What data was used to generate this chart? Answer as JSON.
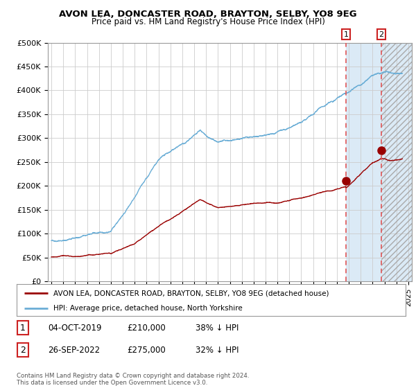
{
  "title": "AVON LEA, DONCASTER ROAD, BRAYTON, SELBY, YO8 9EG",
  "subtitle": "Price paid vs. HM Land Registry's House Price Index (HPI)",
  "ylabel_ticks": [
    "£0",
    "£50K",
    "£100K",
    "£150K",
    "£200K",
    "£250K",
    "£300K",
    "£350K",
    "£400K",
    "£450K",
    "£500K"
  ],
  "ytick_values": [
    0,
    50000,
    100000,
    150000,
    200000,
    250000,
    300000,
    350000,
    400000,
    450000,
    500000
  ],
  "xlim_start": 1994.7,
  "xlim_end": 2025.3,
  "ylim_min": 0,
  "ylim_max": 500000,
  "hpi_color": "#6baed6",
  "price_color": "#990000",
  "marker_color": "#990000",
  "vline_color": "#e05555",
  "sale1_date_num": 2019.76,
  "sale1_price": 210000,
  "sale2_date_num": 2022.74,
  "sale2_price": 275000,
  "legend_price_label": "AVON LEA, DONCASTER ROAD, BRAYTON, SELBY, YO8 9EG (detached house)",
  "legend_hpi_label": "HPI: Average price, detached house, North Yorkshire",
  "table_row1": [
    "1",
    "04-OCT-2019",
    "£210,000",
    "38% ↓ HPI"
  ],
  "table_row2": [
    "2",
    "26-SEP-2022",
    "£275,000",
    "32% ↓ HPI"
  ],
  "footer_text": "Contains HM Land Registry data © Crown copyright and database right 2024.\nThis data is licensed under the Open Government Licence v3.0.",
  "background_color": "#ffffff",
  "shade_color": "#dbeaf6",
  "grid_color": "#cccccc"
}
